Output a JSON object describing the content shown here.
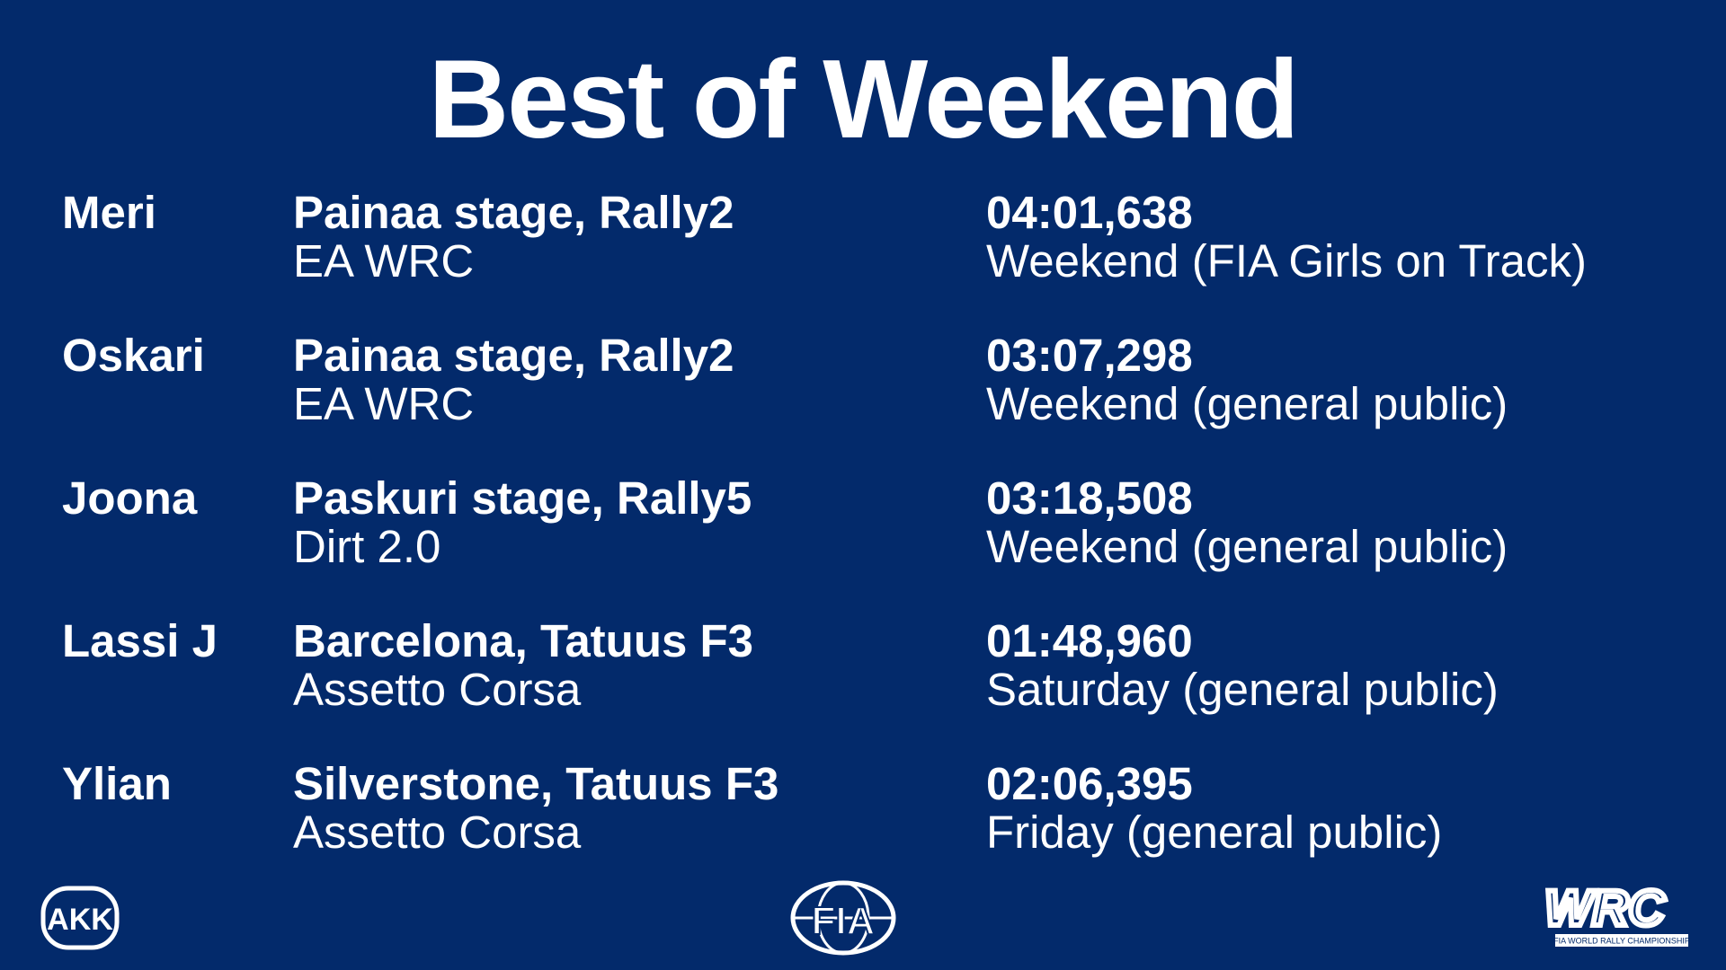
{
  "title": "Best of Weekend",
  "entries": [
    {
      "driver": "Meri",
      "track": "Painaa stage, Rally2",
      "game": "EA WRC",
      "time": "04:01,638",
      "category": "Weekend (FIA Girls on Track)"
    },
    {
      "driver": "Oskari",
      "track": "Painaa stage, Rally2",
      "game": "EA WRC",
      "time": "03:07,298",
      "category": "Weekend (general public)"
    },
    {
      "driver": "Joona",
      "track": "Paskuri stage, Rally5",
      "game": "Dirt 2.0",
      "time": "03:18,508",
      "category": "Weekend (general public)"
    },
    {
      "driver": "Lassi J",
      "track": "Barcelona, Tatuus F3",
      "game": "Assetto Corsa",
      "time": "01:48,960",
      "category": "Saturday (general public)"
    },
    {
      "driver": "Ylian",
      "track": "Silverstone, Tatuus F3",
      "game": "Assetto Corsa",
      "time": "02:06,395",
      "category": "Friday (general public)"
    }
  ],
  "logos": {
    "left": "AKK",
    "center": "FIA",
    "right": "WRC",
    "right_caption": "FIA WORLD RALLY CHAMPIONSHIP"
  }
}
